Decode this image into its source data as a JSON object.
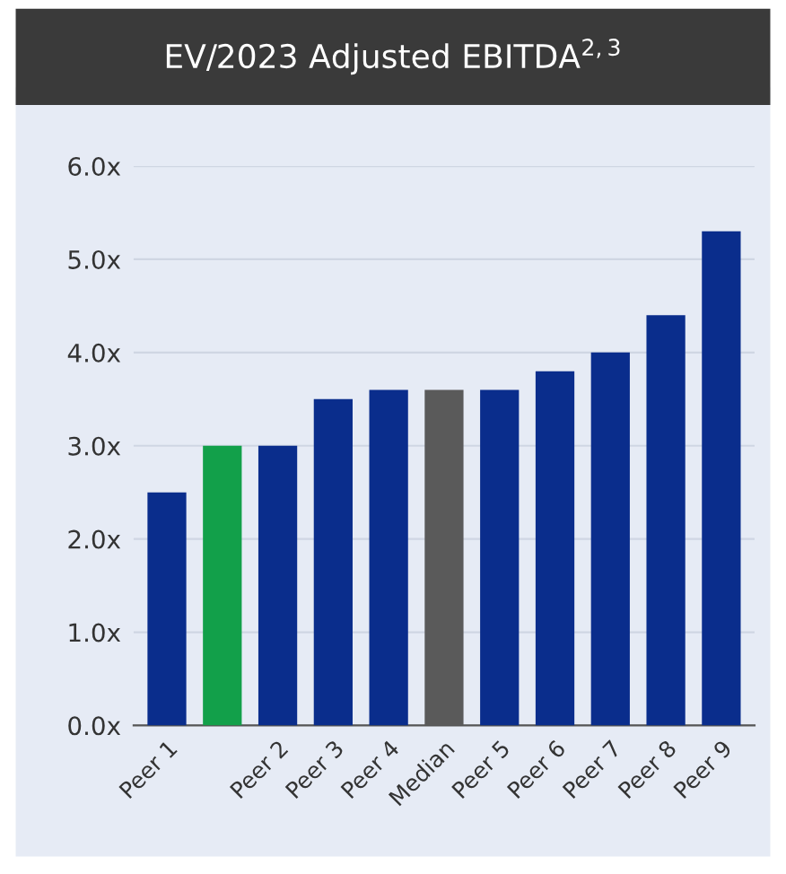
{
  "chart_data": {
    "type": "bar",
    "title": "EV/2023 Adjusted EBITDA$^{2,3}$",
    "categories": [
      "Peer 1",
      null,
      "Peer 2",
      "Peer 3",
      "Peer 4",
      "Median",
      "Peer 5",
      "Peer 6",
      "Peer 7",
      "Peer 8",
      "Peer 9"
    ],
    "values": [
      2.5,
      3.0,
      3.0,
      3.5,
      3.6,
      3.6,
      3.6,
      3.8,
      4.0,
      4.4,
      5.3
    ],
    "colors": [
      "#0a2d8c",
      "#12a04a",
      "#0a2d8c",
      "#0a2d8c",
      "#0a2d8c",
      "#5a5a5a",
      "#0a2d8c",
      "#0a2d8c",
      "#0a2d8c",
      "#0a2d8c",
      "#0a2d8c"
    ],
    "ylim": [
      0,
      6
    ],
    "yticks": [
      {
        "value": 0,
        "label": "0.0x"
      },
      {
        "value": 1,
        "label": "1.0x"
      },
      {
        "value": 2,
        "label": "2.0x"
      },
      {
        "value": 3,
        "label": "3.0x"
      },
      {
        "value": 4,
        "label": "4.0x"
      },
      {
        "value": 5,
        "label": "5.0x"
      },
      {
        "value": 6,
        "label": "6.0x"
      }
    ],
    "grid": "y"
  }
}
